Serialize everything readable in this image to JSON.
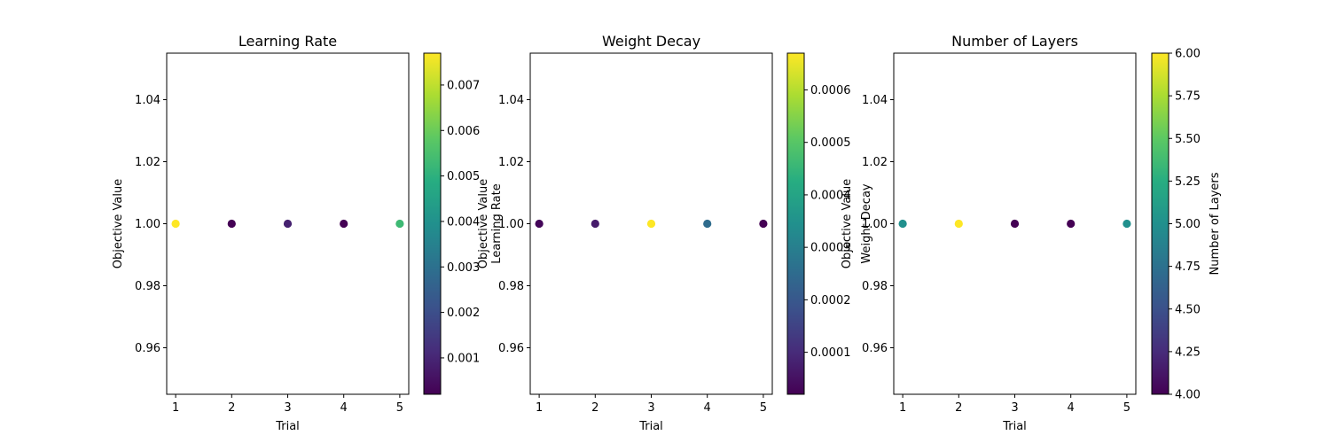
{
  "chart_data": [
    {
      "type": "scatter",
      "title": "Learning Rate",
      "xlabel": "Trial",
      "ylabel": "Objective Value",
      "x": [
        1,
        2,
        3,
        4,
        5
      ],
      "y": [
        1.0,
        1.0,
        1.0,
        1.0,
        1.0
      ],
      "color_values": [
        0.0077,
        0.0002,
        0.0009,
        0.0002,
        0.0053
      ],
      "xticks": [
        "1",
        "2",
        "3",
        "4",
        "5"
      ],
      "xlim": [
        0.84,
        5.16
      ],
      "ylim": [
        0.945,
        1.055
      ],
      "yticks": [
        "0.96",
        "0.98",
        "1.00",
        "1.02",
        "1.04"
      ],
      "colorbar": {
        "label": "Learning Rate",
        "range": [
          0.0002,
          0.0077
        ],
        "ticks": [
          "0.001",
          "0.002",
          "0.003",
          "0.004",
          "0.005",
          "0.006",
          "0.007"
        ],
        "colormap": "viridis"
      },
      "grid": false
    },
    {
      "type": "scatter",
      "title": "Weight Decay",
      "xlabel": "Trial",
      "ylabel": "Objective Value",
      "x": [
        1,
        2,
        3,
        4,
        5
      ],
      "y": [
        1.0,
        1.0,
        1.0,
        1.0,
        1.0
      ],
      "color_values": [
        3e-05,
        7e-05,
        0.00067,
        0.00025,
        2e-05
      ],
      "xticks": [
        "1",
        "2",
        "3",
        "4",
        "5"
      ],
      "xlim": [
        0.84,
        5.16
      ],
      "ylim": [
        0.945,
        1.055
      ],
      "yticks": [
        "0.96",
        "0.98",
        "1.00",
        "1.02",
        "1.04"
      ],
      "colorbar": {
        "label": "Weight Decay",
        "range": [
          2e-05,
          0.00067
        ],
        "ticks": [
          "0.0001",
          "0.0002",
          "0.0003",
          "0.0004",
          "0.0005",
          "0.0006"
        ],
        "colormap": "viridis"
      },
      "grid": false
    },
    {
      "type": "scatter",
      "title": "Number of Layers",
      "xlabel": "Trial",
      "ylabel": "Objective Value",
      "x": [
        1,
        2,
        3,
        4,
        5
      ],
      "y": [
        1.0,
        1.0,
        1.0,
        1.0,
        1.0
      ],
      "color_values": [
        5,
        6,
        4,
        4,
        5
      ],
      "xticks": [
        "1",
        "2",
        "3",
        "4",
        "5"
      ],
      "xlim": [
        0.84,
        5.16
      ],
      "ylim": [
        0.945,
        1.055
      ],
      "yticks": [
        "0.96",
        "0.98",
        "1.00",
        "1.02",
        "1.04"
      ],
      "colorbar": {
        "label": "Number of Layers",
        "range": [
          4,
          6
        ],
        "ticks": [
          "4.00",
          "4.25",
          "4.50",
          "4.75",
          "5.00",
          "5.25",
          "5.50",
          "5.75",
          "6.00"
        ],
        "colormap": "viridis"
      },
      "grid": false
    }
  ]
}
